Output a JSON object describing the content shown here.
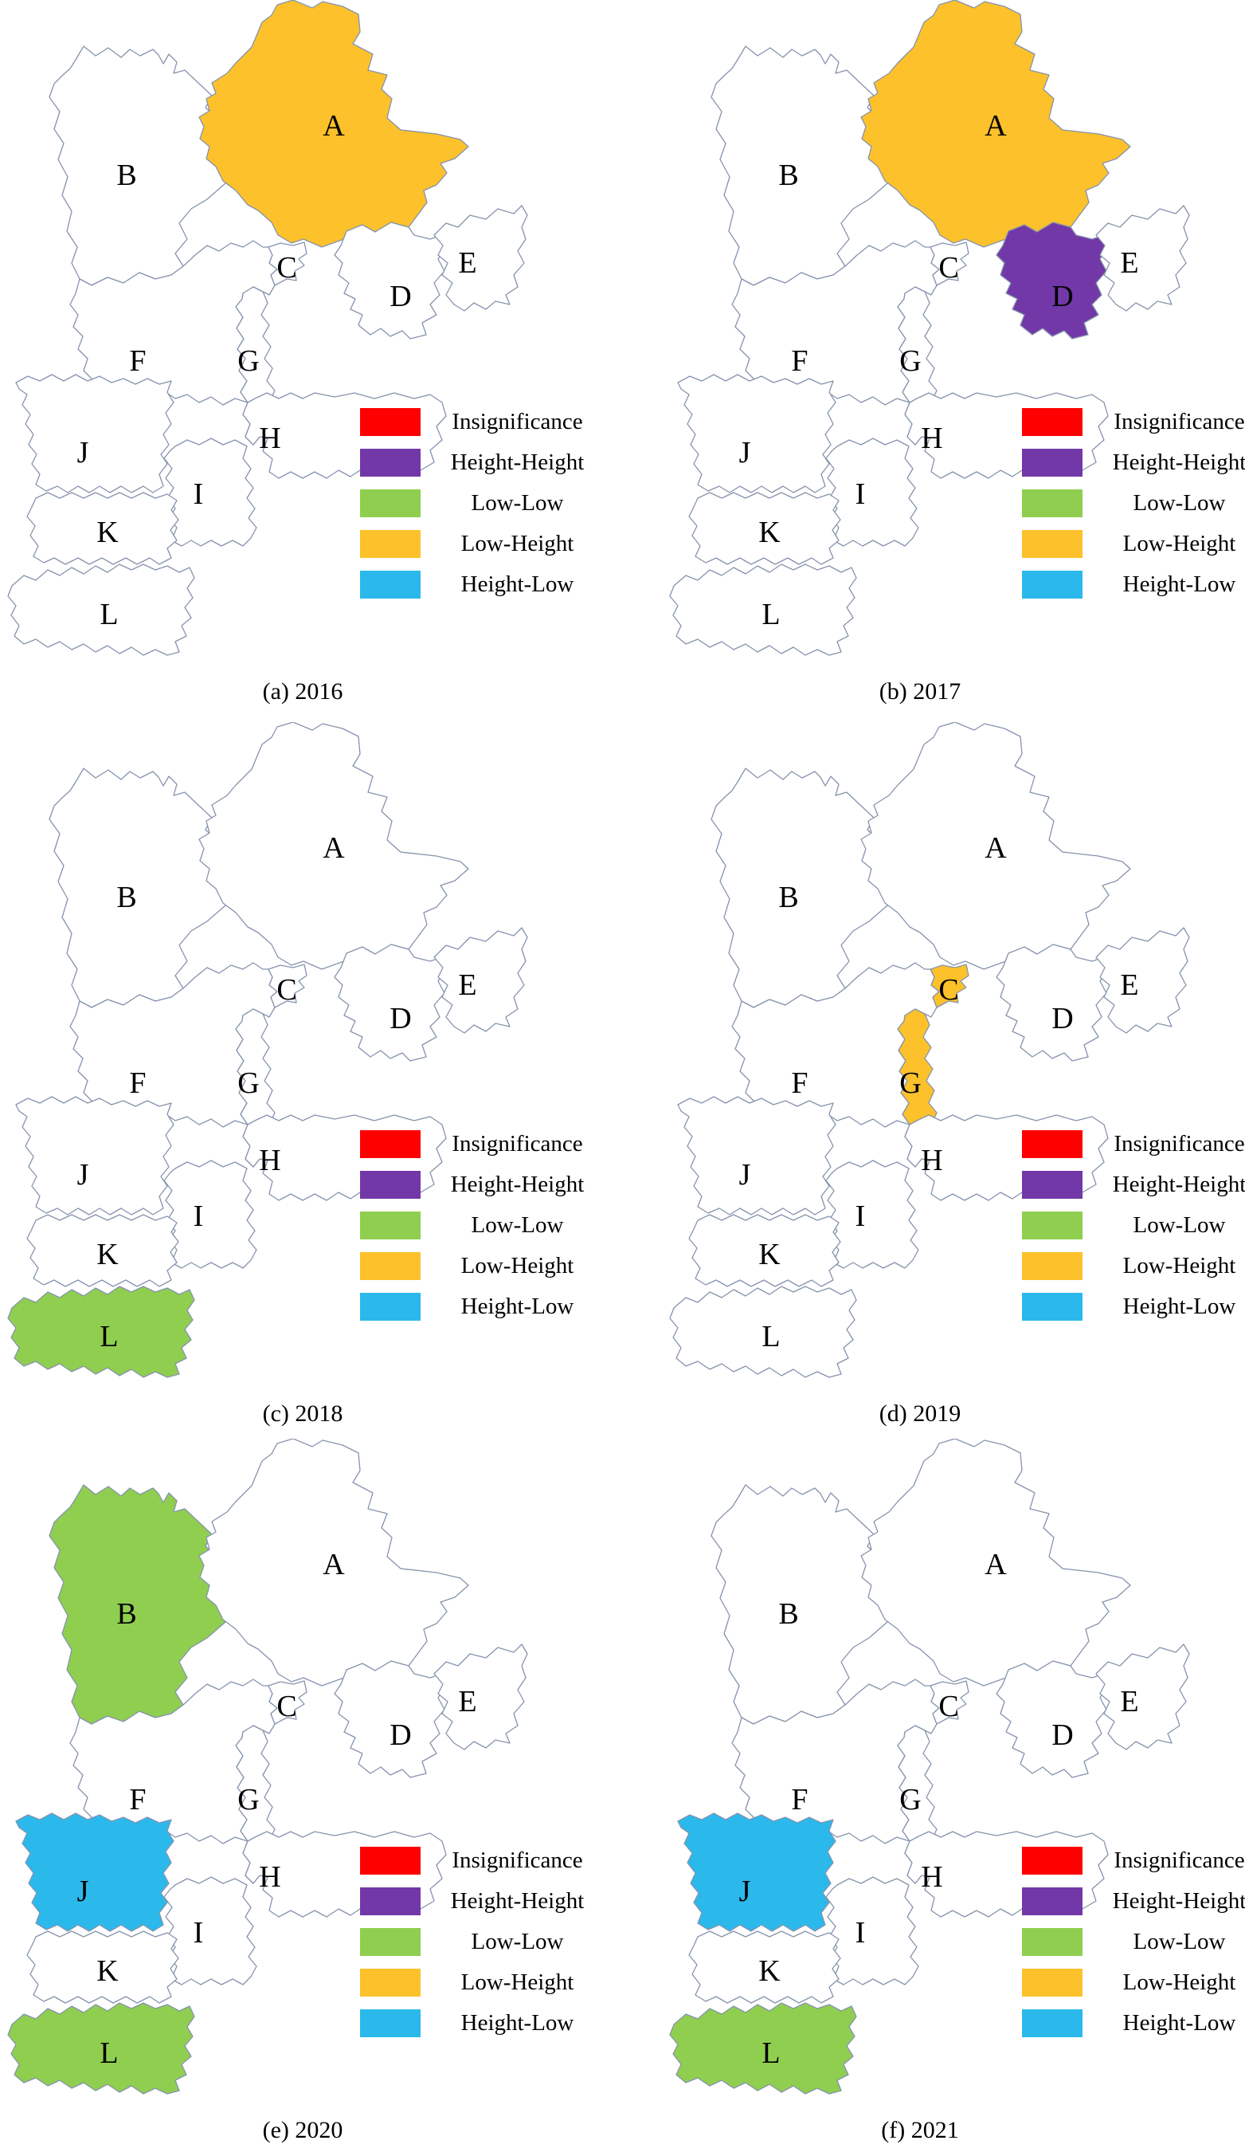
{
  "figure": {
    "type": "choropleth-small-multiples",
    "map_region_labels": [
      "A",
      "B",
      "C",
      "D",
      "E",
      "F",
      "G",
      "H",
      "I",
      "J",
      "K",
      "L"
    ],
    "categories": {
      "insignificance": {
        "label": "Insignificance",
        "color": "#FE0000"
      },
      "height-height": {
        "label": "Height-Height",
        "color": "#7238A8"
      },
      "low-low": {
        "label": "Low-Low",
        "color": "#90CE50"
      },
      "low-height": {
        "label": "Low-Height",
        "color": "#FCC12B"
      },
      "height-low": {
        "label": "Height-Low",
        "color": "#2BB9EC"
      }
    },
    "legend_order": [
      "insignificance",
      "height-height",
      "low-low",
      "low-height",
      "height-low"
    ],
    "map_style": {
      "border_color": "#8593AD",
      "default_fill": "#FFFFFF",
      "label_color": "#000000"
    },
    "panels": [
      {
        "caption": "(a) 2016",
        "classifications": {
          "A": "low-height"
        }
      },
      {
        "caption": "(b) 2017",
        "classifications": {
          "A": "low-height",
          "D": "height-height"
        }
      },
      {
        "caption": "(c) 2018",
        "classifications": {
          "L": "low-low"
        }
      },
      {
        "caption": "(d) 2019",
        "classifications": {
          "C": "low-height",
          "G": "low-height"
        }
      },
      {
        "caption": "(e) 2020",
        "classifications": {
          "B": "low-low",
          "J": "height-low",
          "L": "low-low"
        }
      },
      {
        "caption": "(f) 2021",
        "classifications": {
          "J": "height-low",
          "L": "low-low"
        }
      }
    ]
  }
}
